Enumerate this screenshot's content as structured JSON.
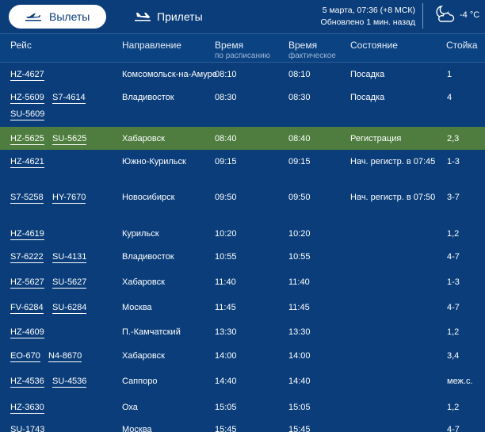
{
  "tabs": {
    "departures": "Вылеты",
    "arrivals": "Прилеты"
  },
  "header_info": {
    "datetime": "5 марта, 07:36 (+8 МСК)",
    "updated": "Обновлено 1 мин. назад"
  },
  "weather": {
    "temp": "-4 °C",
    "icon": "partly-cloudy-night-icon"
  },
  "columns": {
    "flight": "Рейс",
    "direction": "Направление",
    "scheduled": "Время",
    "scheduled_sub": "по расписанию",
    "actual": "Время",
    "actual_sub": "фактическое",
    "status": "Состояние",
    "gate": "Стойка"
  },
  "colors": {
    "background": "#0a3d7a",
    "highlight_row": "#4e7d3f",
    "active_tab": "#ffffff"
  },
  "flights": [
    {
      "codes": [
        "HZ-4627"
      ],
      "direction": "Комсомольск-на-Амуре",
      "scheduled": "08:10",
      "actual": "08:10",
      "status": "Посадка",
      "gate": "1"
    },
    {
      "codes": [
        "HZ-5609",
        "S7-4614",
        "SU-5609"
      ],
      "direction": "Владивосток",
      "scheduled": "08:30",
      "actual": "08:30",
      "status": "Посадка",
      "gate": "4"
    },
    {
      "codes": [
        "HZ-5625",
        "SU-5625"
      ],
      "direction": "Хабаровск",
      "scheduled": "08:40",
      "actual": "08:40",
      "status": "Регистрация",
      "gate": "2,3",
      "highlight": true
    },
    {
      "codes": [
        "HZ-4621"
      ],
      "direction": "Южно-Курильск",
      "scheduled": "09:15",
      "actual": "09:15",
      "status": "Нач. регистр. в 07:45",
      "gate": "1-3"
    },
    {
      "codes": [
        "S7-5258",
        "HY-7670"
      ],
      "direction": "Новосибирск",
      "scheduled": "09:50",
      "actual": "09:50",
      "status": "Нач. регистр. в 07:50",
      "gate": "3-7"
    },
    {
      "codes": [
        "HZ-4619"
      ],
      "direction": "Курильск",
      "scheduled": "10:20",
      "actual": "10:20",
      "status": "",
      "gate": "1,2"
    },
    {
      "codes": [
        "S7-6222",
        "SU-4131"
      ],
      "direction": "Владивосток",
      "scheduled": "10:55",
      "actual": "10:55",
      "status": "",
      "gate": "4-7"
    },
    {
      "codes": [
        "HZ-5627",
        "SU-5627"
      ],
      "direction": "Хабаровск",
      "scheduled": "11:40",
      "actual": "11:40",
      "status": "",
      "gate": "1-3"
    },
    {
      "codes": [
        "FV-6284",
        "SU-6284"
      ],
      "direction": "Москва",
      "scheduled": "11:45",
      "actual": "11:45",
      "status": "",
      "gate": "4-7"
    },
    {
      "codes": [
        "HZ-4609"
      ],
      "direction": "П.-Камчатский",
      "scheduled": "13:30",
      "actual": "13:30",
      "status": "",
      "gate": "1,2"
    },
    {
      "codes": [
        "EO-670",
        "N4-8670"
      ],
      "direction": "Хабаровск",
      "scheduled": "14:00",
      "actual": "14:00",
      "status": "",
      "gate": "3,4"
    },
    {
      "codes": [
        "HZ-4536",
        "SU-4536"
      ],
      "direction": "Саппоро",
      "scheduled": "14:40",
      "actual": "14:40",
      "status": "",
      "gate": "меж.с."
    },
    {
      "codes": [
        "HZ-3630"
      ],
      "direction": "Оха",
      "scheduled": "15:05",
      "actual": "15:05",
      "status": "",
      "gate": "1,2"
    },
    {
      "codes": [
        "SU-1743"
      ],
      "direction": "Москва",
      "scheduled": "15:45",
      "actual": "15:45",
      "status": "",
      "gate": "4-7"
    }
  ]
}
